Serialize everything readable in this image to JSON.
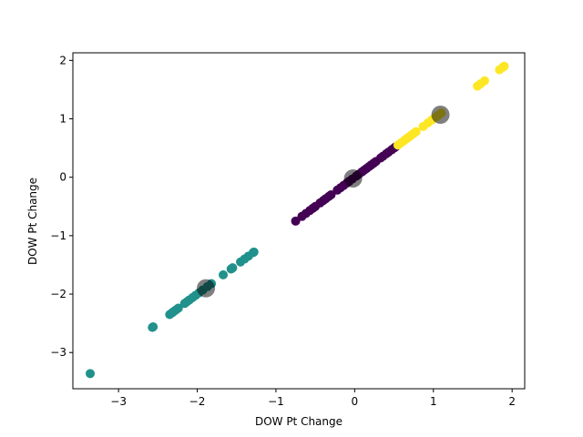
{
  "chart_data": {
    "type": "scatter",
    "title": "",
    "xlabel": "DOW Pt Change",
    "ylabel": "DOW Pt Change",
    "xlim": [
      -3.58,
      2.16
    ],
    "ylim": [
      -3.62,
      2.13
    ],
    "xticks": [
      -3,
      -2,
      -1,
      0,
      1,
      2
    ],
    "yticks": [
      -3,
      -2,
      -1,
      0,
      1,
      2
    ],
    "tick_labels_x": [
      "−3",
      "−2",
      "−1",
      "0",
      "1",
      "2"
    ],
    "tick_labels_y": [
      "−3",
      "−2",
      "−1",
      "0",
      "1",
      "2"
    ],
    "grid": false,
    "legend": "none",
    "clusters": [
      {
        "color": "#440154",
        "points": [
          -0.75,
          -0.67,
          -0.62,
          -0.57,
          -0.53,
          -0.5,
          -0.44,
          -0.4,
          -0.37,
          -0.33,
          -0.3,
          -0.22,
          -0.18,
          -0.14,
          -0.1,
          -0.07,
          -0.03,
          0.02,
          0.05,
          0.09,
          0.12,
          0.15,
          0.18,
          0.21,
          0.24,
          0.27,
          0.33,
          0.36,
          0.4,
          0.43,
          0.47,
          0.5,
          0.52
        ]
      },
      {
        "color": "#21918c",
        "points": [
          -3.36,
          -2.57,
          -2.56,
          -2.35,
          -2.32,
          -2.3,
          -2.27,
          -2.24,
          -2.16,
          -2.13,
          -2.1,
          -2.06,
          -2.02,
          -1.98,
          -1.93,
          -1.87,
          -1.82,
          -1.67,
          -1.57,
          -1.55,
          -1.45,
          -1.4,
          -1.35,
          -1.29,
          -1.28
        ]
      },
      {
        "color": "#fde725",
        "points": [
          0.55,
          0.59,
          0.63,
          0.66,
          0.69,
          0.72,
          0.75,
          0.78,
          0.87,
          0.93,
          0.98,
          1.03,
          1.06,
          1.1,
          1.56,
          1.6,
          1.65,
          1.84,
          1.88,
          1.9
        ]
      }
    ],
    "centroids": {
      "color": "#000000",
      "opacity": 0.5,
      "points": [
        [
          -0.02,
          -0.02
        ],
        [
          -1.89,
          -1.9
        ],
        [
          1.09,
          1.07
        ]
      ]
    }
  }
}
